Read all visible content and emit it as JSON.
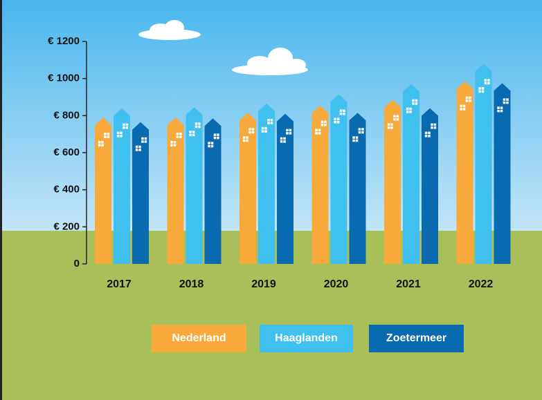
{
  "chart_data": {
    "type": "bar",
    "categories": [
      "2017",
      "2018",
      "2019",
      "2020",
      "2021",
      "2022"
    ],
    "series": [
      {
        "name": "Nederland",
        "color": "#f7a93b",
        "values": [
          790,
          790,
          815,
          855,
          885,
          985
        ]
      },
      {
        "name": "Haaglanden",
        "color": "#3fc0ef",
        "values": [
          840,
          845,
          865,
          915,
          970,
          1080
        ]
      },
      {
        "name": "Zoetermeer",
        "color": "#0a6ab0",
        "values": [
          765,
          785,
          810,
          815,
          840,
          975
        ]
      }
    ],
    "ylim": [
      0,
      1200
    ],
    "yticks": [
      0,
      {
        "value": 200,
        "label": "€ 200"
      },
      {
        "value": 400,
        "label": "€ 400"
      },
      {
        "value": 600,
        "label": "€ 600"
      },
      {
        "value": 800,
        "label": "€ 800"
      },
      {
        "value": 1000,
        "label": "€ 1000"
      },
      {
        "value": 1200,
        "label": "€ 1200"
      }
    ],
    "legend": "bottom"
  }
}
